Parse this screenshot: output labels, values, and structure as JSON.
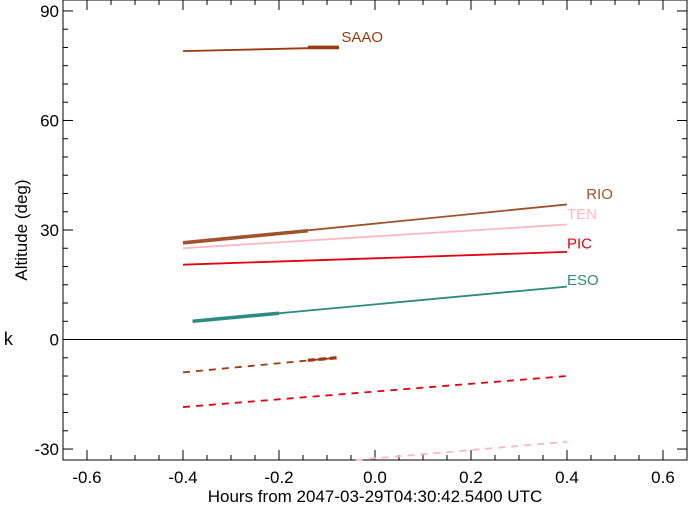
{
  "chart_data": {
    "type": "line",
    "title": "",
    "xlabel": "Hours from 2047-03-29T04:30:42.5400 UTC",
    "ylabel": "Altitude (deg)",
    "xlim": [
      -0.65,
      0.65
    ],
    "ylim": [
      -33,
      93
    ],
    "x_ticks": [
      -0.6,
      -0.4,
      -0.2,
      0.0,
      0.2,
      0.4,
      0.6
    ],
    "x_tick_labels": [
      "-0.6",
      "-0.4",
      "-0.2",
      "0.0",
      "0.2",
      "0.4",
      "0.6"
    ],
    "y_ticks": [
      -30,
      0,
      30,
      60,
      90
    ],
    "y_tick_labels": [
      "-30",
      "0",
      "30",
      "60",
      "90"
    ],
    "x_minor_step": 0.05,
    "y_minor_step": 5,
    "zero_line": true,
    "grid": false,
    "stray_text": "k",
    "series": [
      {
        "name": "SAAO",
        "color": "#9B3A0C",
        "line": {
          "x": [
            -0.4,
            -0.075
          ],
          "y": [
            79.0,
            80.0
          ]
        },
        "thick": {
          "x": [
            -0.14,
            -0.075
          ],
          "y": [
            80.0,
            80.0
          ]
        },
        "dashed": {
          "x": [
            -0.4,
            -0.08
          ],
          "y": [
            -9.0,
            -5.0
          ]
        },
        "dashed_thick": {
          "x": [
            -0.14,
            -0.08
          ],
          "y": [
            -5.7,
            -5.0
          ]
        },
        "label": {
          "x": -0.07,
          "y": 81.5
        }
      },
      {
        "name": "RIO",
        "color": "#A0522D",
        "line": {
          "x": [
            -0.4,
            0.4
          ],
          "y": [
            26.5,
            37.0
          ]
        },
        "thick": {
          "x": [
            -0.4,
            -0.14
          ],
          "y": [
            26.5,
            29.8
          ]
        },
        "label": {
          "x": 0.44,
          "y": 38.5
        }
      },
      {
        "name": "TEN",
        "color": "#FFB6C1",
        "line": {
          "x": [
            -0.4,
            0.4
          ],
          "y": [
            25.0,
            31.5
          ]
        },
        "dashed": {
          "x": [
            -0.04,
            0.4
          ],
          "y": [
            -33.0,
            -28.0
          ]
        },
        "label": {
          "x": 0.4,
          "y": 33.0
        }
      },
      {
        "name": "PIC",
        "color": "#E3000F",
        "line": {
          "x": [
            -0.4,
            0.4
          ],
          "y": [
            20.5,
            24.0
          ]
        },
        "dashed": {
          "x": [
            -0.4,
            0.4
          ],
          "y": [
            -18.5,
            -10.0
          ]
        },
        "label": {
          "x": 0.4,
          "y": 25.0
        }
      },
      {
        "name": "ESO",
        "color": "#2E8B80",
        "line": {
          "x": [
            -0.38,
            0.4
          ],
          "y": [
            5.0,
            14.5
          ]
        },
        "thick": {
          "x": [
            -0.38,
            -0.2
          ],
          "y": [
            5.0,
            7.2
          ]
        },
        "label": {
          "x": 0.4,
          "y": 15.0
        }
      }
    ]
  }
}
